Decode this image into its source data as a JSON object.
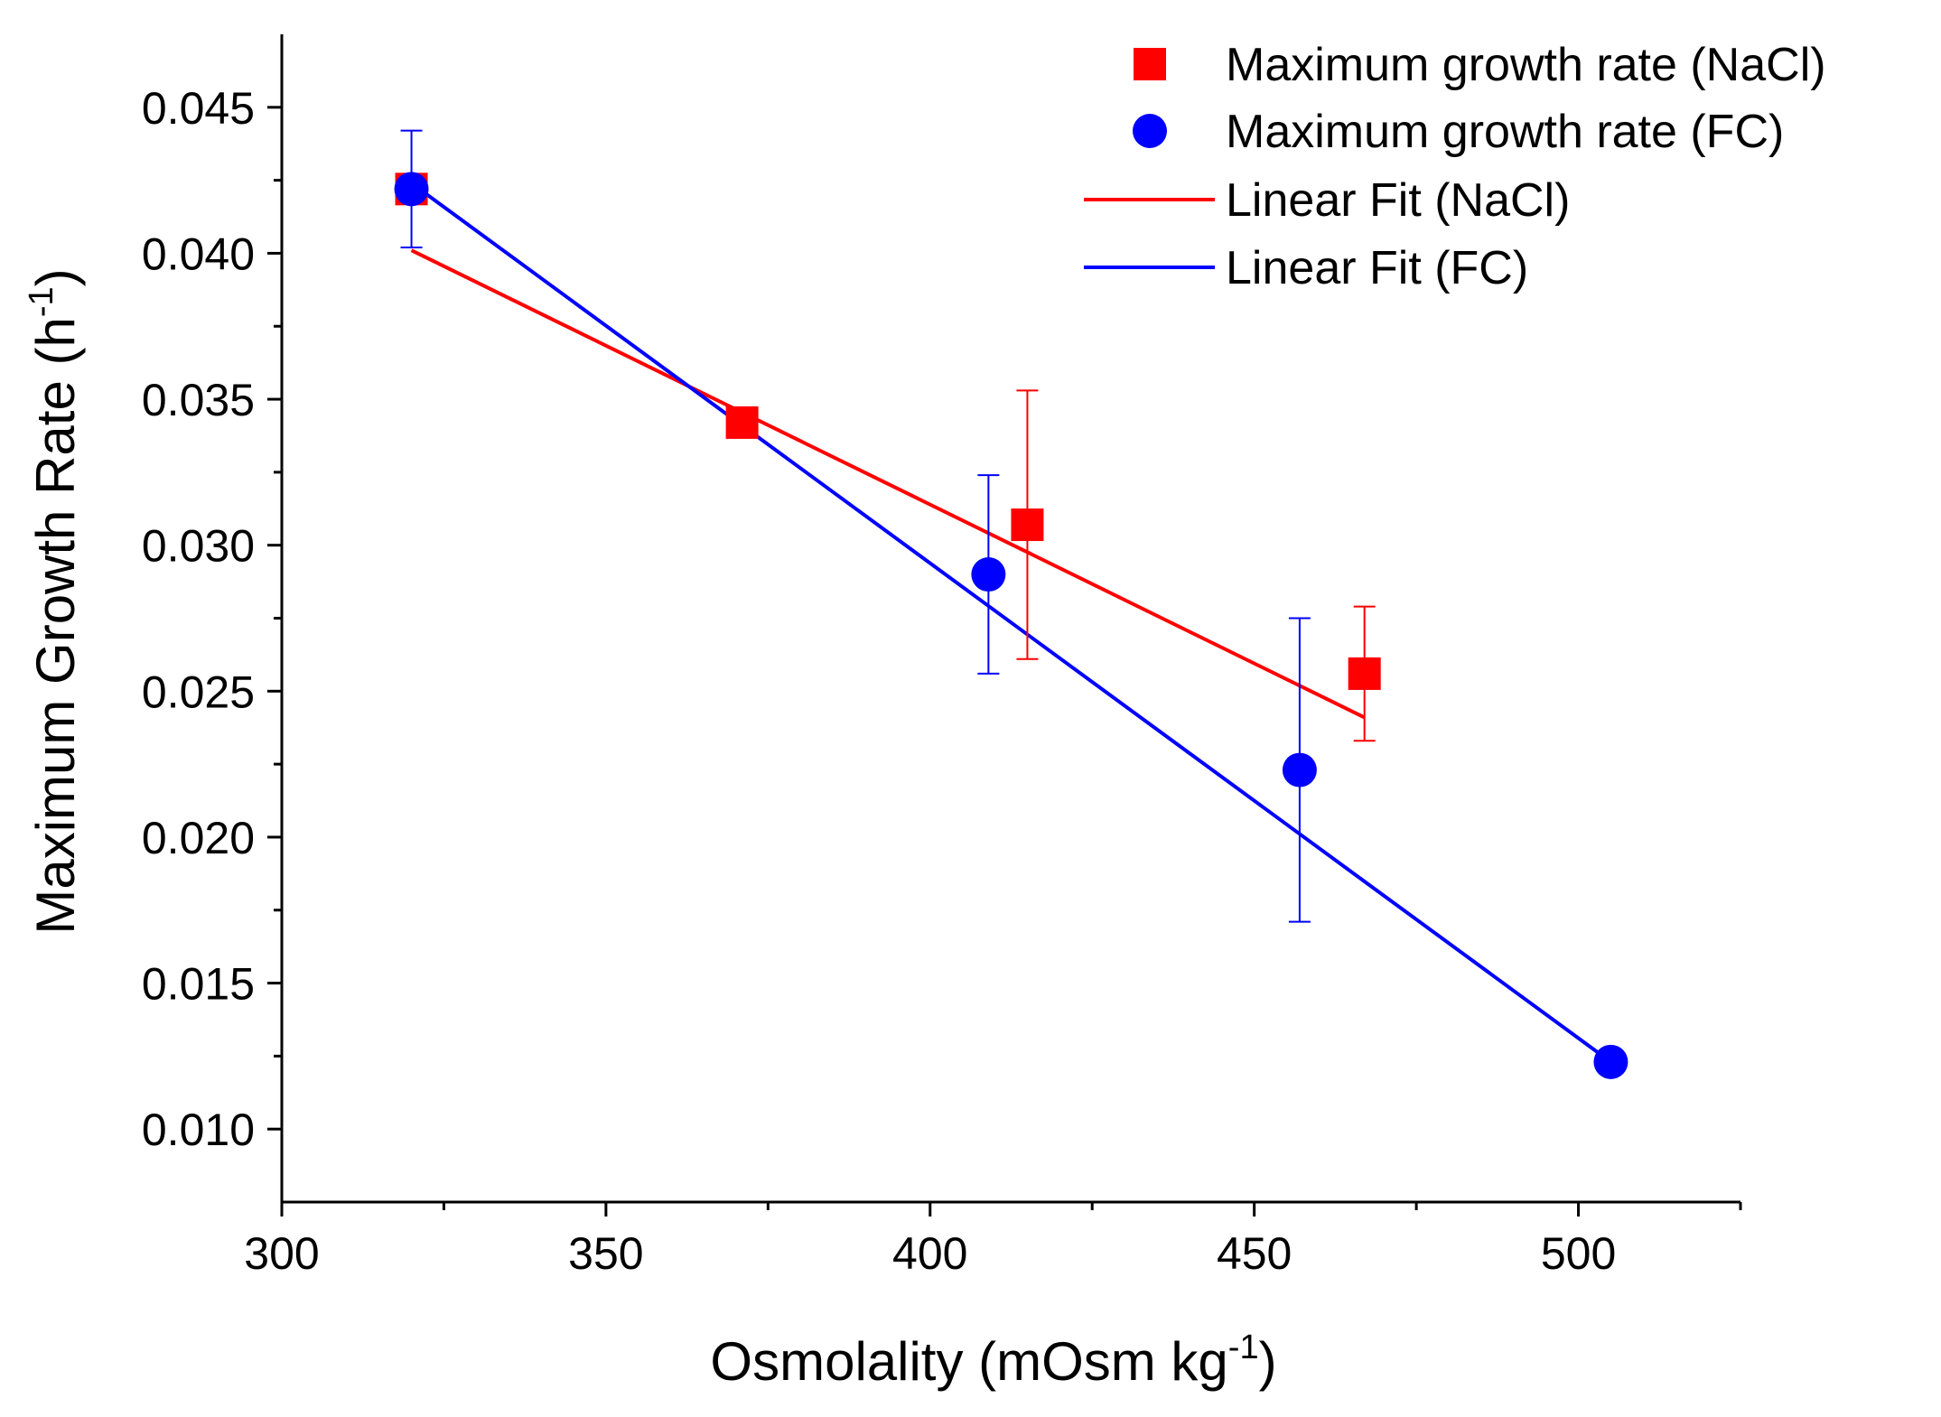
{
  "chart_data": {
    "type": "scatter",
    "xlabel": {
      "main": "Osmolality (mOsm kg",
      "sup": "-1",
      "close": ")"
    },
    "ylabel": {
      "main": "Maximum Growth Rate (h",
      "sup": "-1",
      "close": ")"
    },
    "xlim": [
      300,
      525
    ],
    "ylim": [
      0.0075,
      0.0475
    ],
    "x_ticks": [
      300,
      350,
      400,
      450,
      500
    ],
    "x_tick_labels": [
      "300",
      "350",
      "400",
      "450",
      "500"
    ],
    "x_minor_ticks": [
      325,
      375,
      425,
      475,
      525
    ],
    "y_ticks": [
      0.01,
      0.015,
      0.02,
      0.025,
      0.03,
      0.035,
      0.04,
      0.045
    ],
    "y_tick_labels": [
      "0.010",
      "0.015",
      "0.020",
      "0.025",
      "0.030",
      "0.035",
      "0.040",
      "0.045"
    ],
    "y_minor_ticks": [
      0.0125,
      0.0175,
      0.0225,
      0.0275,
      0.0325,
      0.0375,
      0.0425
    ],
    "series": [
      {
        "name": "Maximum growth rate (NaCl)",
        "marker": "square",
        "color": "#ff0000",
        "x": [
          320,
          371,
          415,
          467
        ],
        "y": [
          0.0422,
          0.0342,
          0.0307,
          0.0256
        ],
        "err": [
          0.0,
          0.0,
          0.0046,
          0.0023
        ]
      },
      {
        "name": "Maximum growth rate (FC)",
        "marker": "circle",
        "color": "#0000ff",
        "x": [
          320,
          409,
          457,
          505
        ],
        "y": [
          0.0422,
          0.029,
          0.0223,
          0.0123
        ],
        "err": [
          0.002,
          0.0034,
          0.0052,
          0.0
        ]
      }
    ],
    "fits": [
      {
        "name": "Linear Fit (NaCl)",
        "color": "#ff0000",
        "x": [
          320,
          467
        ],
        "y": [
          0.0401,
          0.0241
        ]
      },
      {
        "name": "Linear Fit (FC)",
        "color": "#0000ff",
        "x": [
          320,
          505
        ],
        "y": [
          0.0424,
          0.0123
        ]
      }
    ],
    "legend": {
      "position": "top-right",
      "entries": [
        {
          "label": "Maximum growth rate (NaCl)",
          "kind": "square",
          "color": "#ff0000"
        },
        {
          "label": "Maximum growth rate (FC)",
          "kind": "circle",
          "color": "#0000ff"
        },
        {
          "label": "Linear Fit (NaCl)",
          "kind": "line",
          "color": "#ff0000"
        },
        {
          "label": "Linear Fit (FC)",
          "kind": "line",
          "color": "#0000ff"
        }
      ]
    }
  }
}
